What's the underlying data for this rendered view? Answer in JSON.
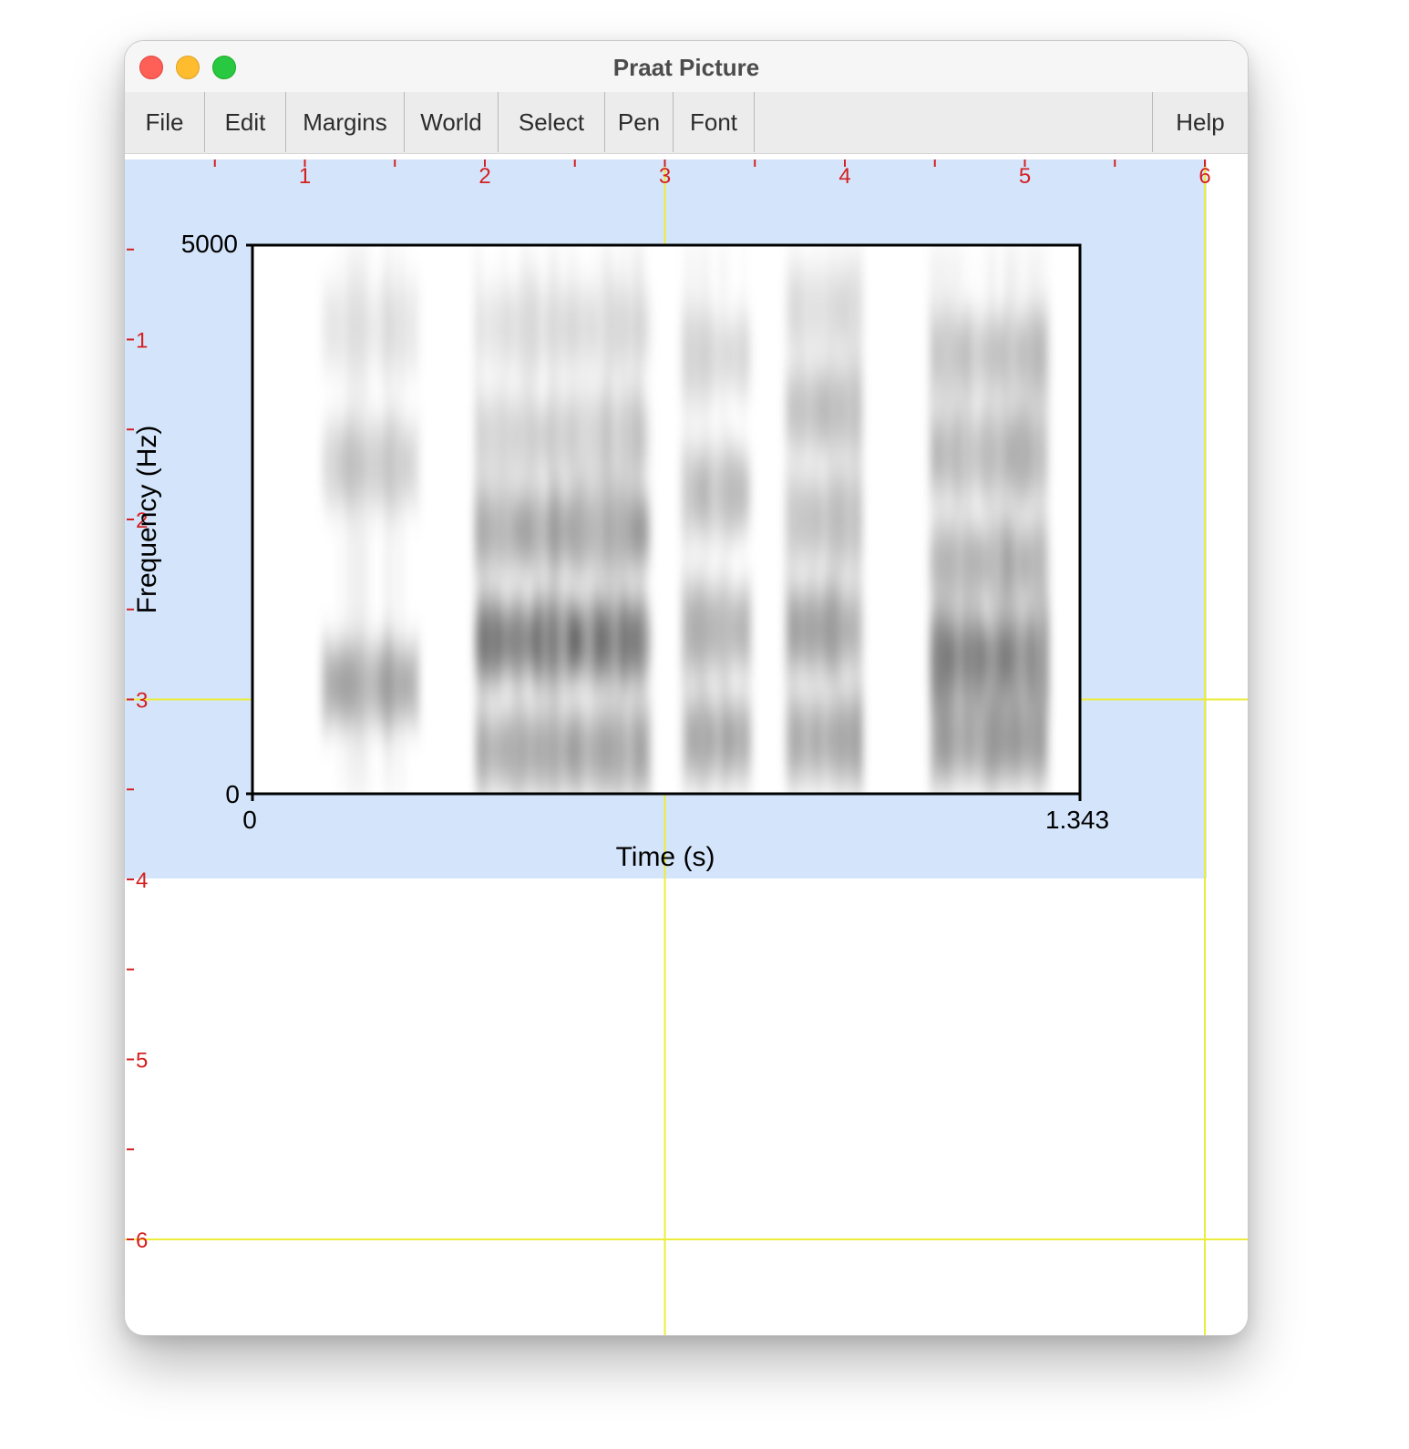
{
  "window": {
    "title": "Praat Picture"
  },
  "menu": {
    "file": "File",
    "edit": "Edit",
    "margins": "Margins",
    "world": "World",
    "select": "Select",
    "pen": "Pen",
    "font": "Font",
    "help": "Help"
  },
  "ruler": {
    "top": [
      "1",
      "2",
      "3",
      "4",
      "5",
      "6"
    ],
    "left": [
      "-1",
      "-2",
      "-3",
      "-4",
      "-5",
      "-6"
    ]
  },
  "colors": {
    "selection": "#d4e5fb",
    "ruler_red": "#d42020",
    "grid_yellow": "#ecec3a",
    "window_bg": "#ffffff"
  },
  "chart_data": {
    "type": "heatmap",
    "xlabel": "Time (s)",
    "ylabel": "Frequency (Hz)",
    "xlim": [
      0,
      1.343
    ],
    "ylim": [
      0,
      5000
    ],
    "x_tick_labels": [
      "0",
      "1.343"
    ],
    "y_tick_labels": [
      "0",
      "5000"
    ],
    "grid": false,
    "colormap": "grayscale"
  }
}
